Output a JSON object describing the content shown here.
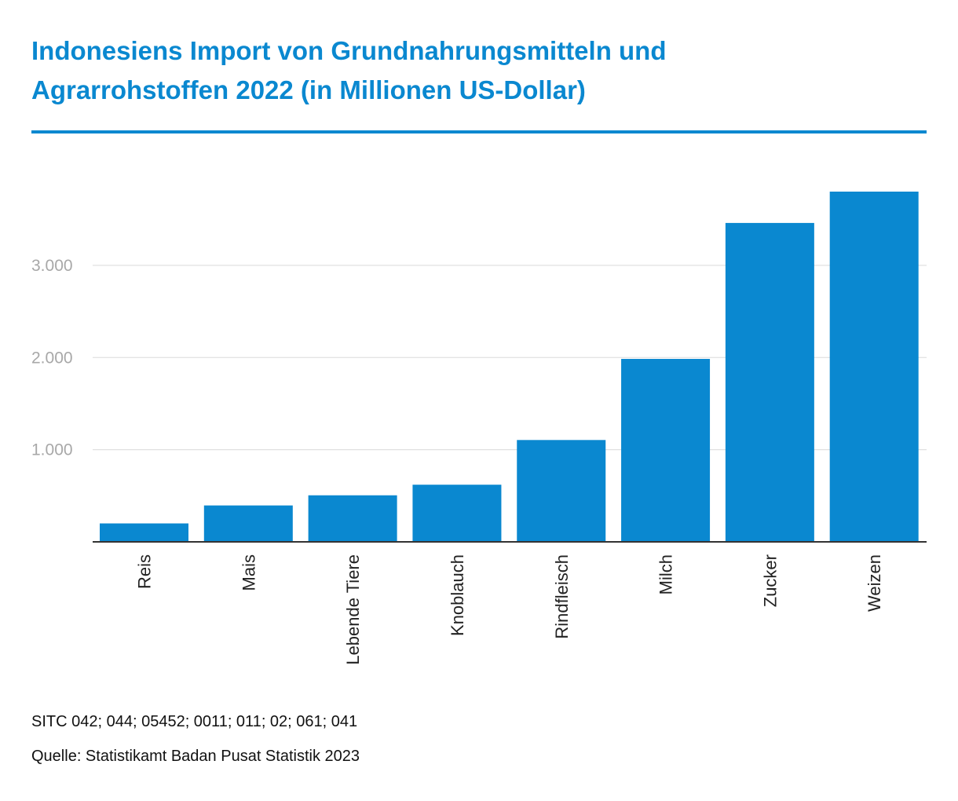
{
  "chart_data": {
    "type": "bar",
    "title_lines": [
      "Indonesiens Import von Grundnahrungsmitteln und",
      "Agrarrohstoffen 2022 (in Millionen US-Dollar)"
    ],
    "xlabel": "",
    "ylabel": "",
    "categories": [
      "Reis",
      "Mais",
      "Lebende Tiere",
      "Knoblauch",
      "Rindfleisch",
      "Milch",
      "Zucker",
      "Weizen"
    ],
    "values": [
      200,
      395,
      505,
      620,
      1105,
      1985,
      3460,
      3800
    ],
    "ylim": [
      0,
      3800
    ],
    "yticks": [
      1000,
      2000,
      3000
    ],
    "ytick_labels": [
      "1.000",
      "2.000",
      "3.000"
    ],
    "grid": true,
    "legend": "none",
    "colors": {
      "bar": "#0a88d0",
      "title": "#0a88d0"
    }
  },
  "footer": {
    "note": "SITC 042; 044; 05452; 0011; 011; 02; 061; 041",
    "source": "Quelle: Statistikamt Badan Pusat Statistik 2023"
  }
}
